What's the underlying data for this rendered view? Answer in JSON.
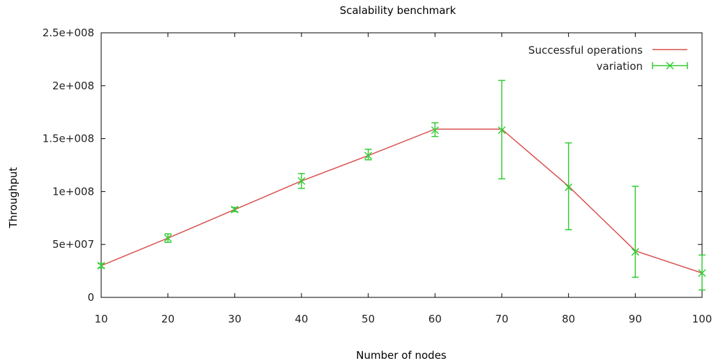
{
  "chart_data": {
    "type": "line",
    "title": "Scalability benchmark",
    "xlabel": "Number of nodes",
    "ylabel": "Throughput",
    "xlim": [
      10,
      100
    ],
    "ylim": [
      0,
      250000000
    ],
    "x_ticks": [
      10,
      20,
      30,
      40,
      50,
      60,
      70,
      80,
      90,
      100
    ],
    "y_ticks": [
      0,
      50000000,
      100000000,
      150000000,
      200000000,
      250000000
    ],
    "y_tick_labels": [
      "0",
      "5e+007",
      "1e+008",
      "1.5e+008",
      "2e+008",
      "2.5e+008"
    ],
    "grid": false,
    "legend_position": "top-right",
    "series": [
      {
        "name": "Successful operations",
        "style": "line",
        "color": "#d94f4f",
        "x": [
          10,
          20,
          30,
          40,
          50,
          60,
          70,
          80,
          90,
          100
        ],
        "y": [
          30000000,
          56000000,
          83000000,
          110000000,
          134000000,
          159000000,
          159000000,
          105000000,
          44000000,
          23000000
        ]
      },
      {
        "name": "variation",
        "style": "errorbars",
        "color": "#33cc33",
        "x": [
          10,
          20,
          30,
          40,
          50,
          60,
          70,
          80,
          90,
          100
        ],
        "y": [
          30000000,
          56000000,
          83000000,
          110000000,
          134000000,
          158000000,
          158000000,
          104000000,
          43000000,
          23000000
        ],
        "y_low": [
          28000000,
          52000000,
          81000000,
          103000000,
          130000000,
          152000000,
          112000000,
          64000000,
          19000000,
          7000000
        ],
        "y_high": [
          32000000,
          60000000,
          85000000,
          117000000,
          140000000,
          165000000,
          205000000,
          146000000,
          105000000,
          40000000
        ]
      }
    ]
  }
}
